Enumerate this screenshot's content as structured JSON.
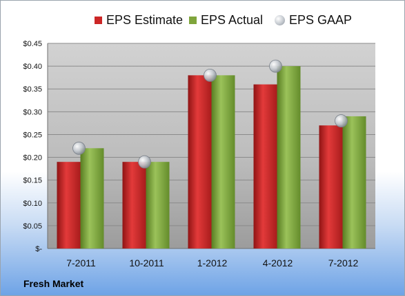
{
  "footer_label": "Fresh Market",
  "colors": {
    "estimate": "#cc2626",
    "actual": "#7fa53c",
    "gaap": "#c0c4ca"
  },
  "chart_data": {
    "type": "bar",
    "categories": [
      "7-2011",
      "10-2011",
      "1-2012",
      "4-2012",
      "7-2012"
    ],
    "series": [
      {
        "name": "EPS Estimate",
        "type": "bar",
        "values": [
          0.19,
          0.19,
          0.38,
          0.36,
          0.27
        ]
      },
      {
        "name": "EPS Actual",
        "type": "bar",
        "values": [
          0.22,
          0.19,
          0.38,
          0.4,
          0.29
        ]
      },
      {
        "name": "EPS GAAP",
        "type": "marker",
        "values": [
          0.22,
          0.19,
          0.38,
          0.4,
          0.28
        ]
      }
    ],
    "ylim": [
      0,
      0.45
    ],
    "yticks": [
      0,
      0.05,
      0.1,
      0.15,
      0.2,
      0.25,
      0.3,
      0.35,
      0.4,
      0.45
    ],
    "ytick_labels": [
      "$-",
      "$0.05",
      "$0.10",
      "$0.15",
      "$0.20",
      "$0.25",
      "$0.30",
      "$0.35",
      "$0.40",
      "$0.45"
    ],
    "legend_position": "top",
    "grid": true
  }
}
